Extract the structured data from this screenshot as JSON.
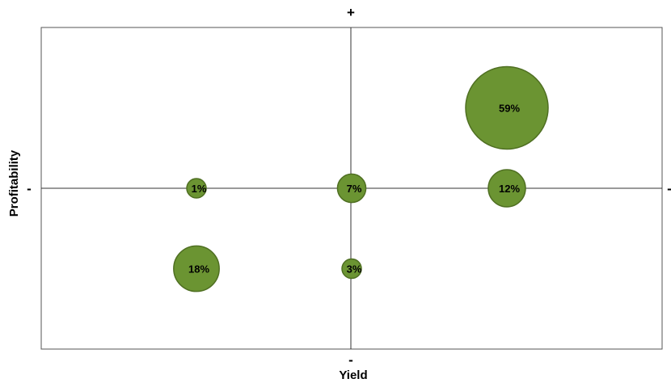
{
  "chart_data": {
    "type": "bubble",
    "xlabel": "Yield",
    "ylabel": "Profitability",
    "x_range": [
      -2,
      2
    ],
    "y_range": [
      -2,
      2
    ],
    "quadrant_marks": {
      "top": "+",
      "bottom": "-",
      "left": "-",
      "right": "-"
    },
    "bubble_color": "#6b9432",
    "bubble_edge_color": "#4f6f22",
    "bubbles": [
      {
        "label": "59%",
        "x": 1,
        "y": 1,
        "value": 59
      },
      {
        "label": "1%",
        "x": -1,
        "y": 0,
        "value": 1
      },
      {
        "label": "7%",
        "x": 0,
        "y": 0,
        "value": 7
      },
      {
        "label": "12%",
        "x": 1,
        "y": 0,
        "value": 12
      },
      {
        "label": "18%",
        "x": -1,
        "y": -1,
        "value": 18
      },
      {
        "label": "3%",
        "x": 0,
        "y": -1,
        "value": 3
      }
    ]
  }
}
